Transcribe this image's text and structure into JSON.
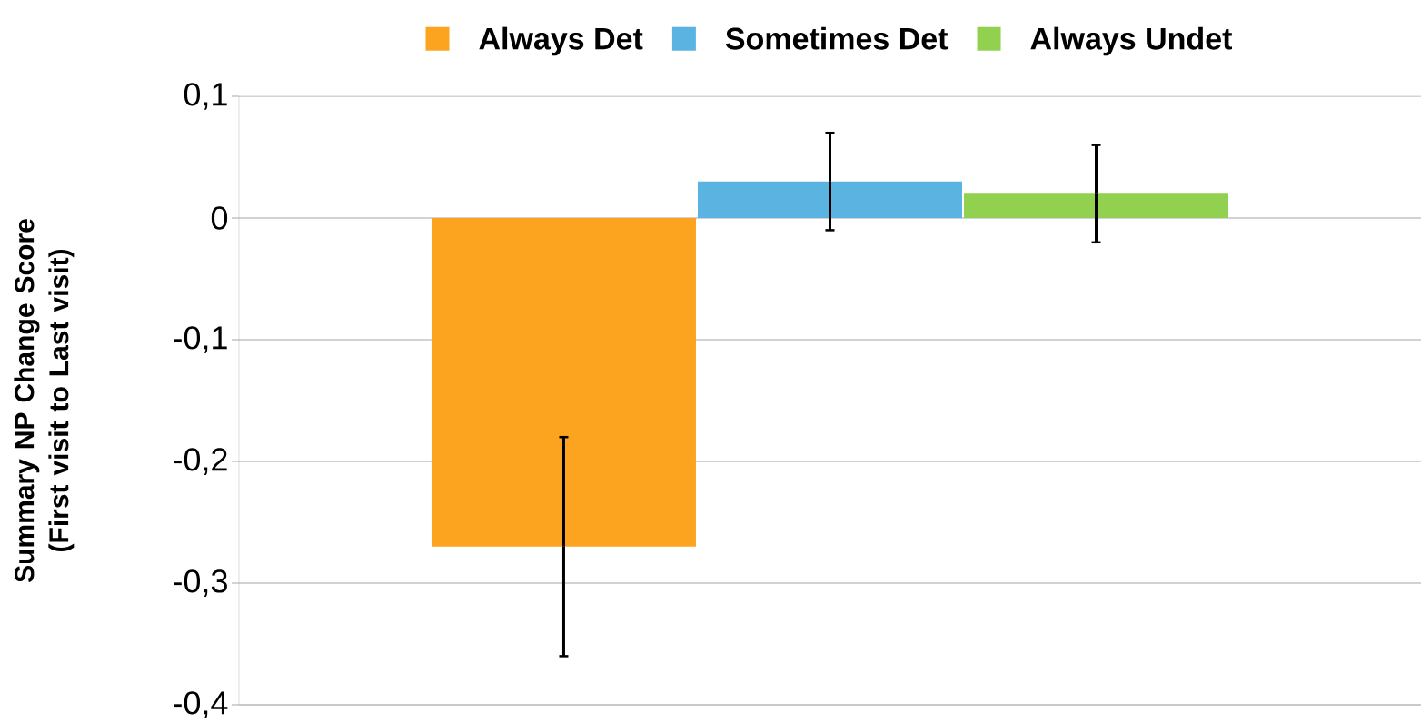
{
  "chart_data": {
    "type": "bar",
    "ylabel": "Summary NP Change Score (First visit to Last visit)",
    "categories": [
      null
    ],
    "series": [
      {
        "name": "Always Det",
        "color": "#fca41f",
        "values": [
          -0.27
        ],
        "errors": [
          0.09
        ]
      },
      {
        "name": "Sometimes Det",
        "color": "#5bb3e1",
        "values": [
          0.03
        ],
        "errors": [
          0.04
        ]
      },
      {
        "name": "Always Undet",
        "color": "#92d050",
        "values": [
          0.02
        ],
        "errors": [
          0.04
        ]
      }
    ],
    "ylim": [
      -0.4,
      0.1
    ],
    "yticks": [
      {
        "value": -0.4,
        "label": "-0,4"
      },
      {
        "value": -0.3,
        "label": "-0,3"
      },
      {
        "value": -0.2,
        "label": "-0,2"
      },
      {
        "value": -0.1,
        "label": "-0,1"
      },
      0,
      {
        "value": 0.1,
        "label": "0,1"
      }
    ],
    "grid": "y",
    "legend": "top",
    "tick_labels": "y"
  }
}
